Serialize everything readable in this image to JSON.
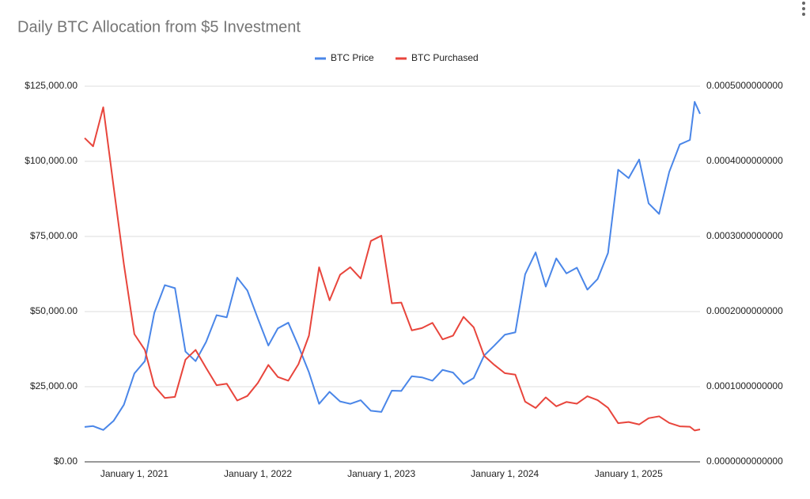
{
  "chart_data": {
    "type": "line",
    "title": "Daily BTC Allocation from $5 Investment",
    "x": [
      "2020-08-07",
      "2020-09-01",
      "2020-10-01",
      "2020-11-01",
      "2020-12-01",
      "2021-01-01",
      "2021-02-01",
      "2021-03-01",
      "2021-04-01",
      "2021-05-01",
      "2021-06-01",
      "2021-07-01",
      "2021-08-01",
      "2021-09-01",
      "2021-10-01",
      "2021-11-01",
      "2021-12-01",
      "2022-01-01",
      "2022-02-01",
      "2022-03-01",
      "2022-04-01",
      "2022-05-01",
      "2022-06-01",
      "2022-07-01",
      "2022-08-01",
      "2022-09-01",
      "2022-10-01",
      "2022-11-01",
      "2022-12-01",
      "2023-01-01",
      "2023-02-01",
      "2023-03-01",
      "2023-04-01",
      "2023-05-01",
      "2023-06-01",
      "2023-07-01",
      "2023-08-01",
      "2023-09-01",
      "2023-10-01",
      "2023-11-01",
      "2023-12-01",
      "2024-01-01",
      "2024-02-01",
      "2024-03-01",
      "2024-04-01",
      "2024-05-01",
      "2024-06-01",
      "2024-07-01",
      "2024-08-01",
      "2024-09-01",
      "2024-10-01",
      "2024-11-01",
      "2024-12-01",
      "2025-01-01",
      "2025-02-01",
      "2025-03-01",
      "2025-04-01",
      "2025-05-01",
      "2025-06-01",
      "2025-07-01",
      "2025-07-15",
      "2025-07-31"
    ],
    "series": [
      {
        "name": "BTC Price",
        "color": "#4a86e8",
        "axis": "y",
        "values": [
          11600,
          11900,
          10600,
          13700,
          19000,
          29400,
          33500,
          49600,
          58800,
          57800,
          36700,
          33500,
          39900,
          48800,
          48100,
          61300,
          57000,
          47700,
          38700,
          44400,
          46300,
          38500,
          29800,
          19300,
          23300,
          20100,
          19300,
          20500,
          17000,
          16600,
          23700,
          23600,
          28500,
          28100,
          27000,
          30600,
          29700,
          25900,
          27900,
          35400,
          38700,
          42300,
          43100,
          62400,
          69700,
          58300,
          67700,
          62700,
          64600,
          57300,
          60800,
          69500,
          97200,
          94400,
          100600,
          86000,
          82500,
          96500,
          105600,
          107100,
          119800,
          115800
        ]
      },
      {
        "name": "BTC Purchased",
        "color": "#e8453c",
        "axis": "y2",
        "values": [
          0.000431,
          0.00042,
          0.000472,
          0.000365,
          0.000263,
          0.00017,
          0.000149,
          0.000101,
          8.5e-05,
          8.65e-05,
          0.000136,
          0.000149,
          0.000125,
          0.000102,
          0.000104,
          8.16e-05,
          8.77e-05,
          0.000105,
          0.000129,
          0.000113,
          0.000108,
          0.00013,
          0.000168,
          0.000259,
          0.000215,
          0.000249,
          0.000259,
          0.000244,
          0.000294,
          0.000301,
          0.000211,
          0.000212,
          0.000175,
          0.000178,
          0.000185,
          0.000163,
          0.000168,
          0.000193,
          0.000179,
          0.000141,
          0.000129,
          0.000118,
          0.000116,
          8.01e-05,
          7.17e-05,
          8.58e-05,
          7.39e-05,
          7.97e-05,
          7.74e-05,
          8.73e-05,
          8.22e-05,
          7.19e-05,
          5.14e-05,
          5.3e-05,
          4.97e-05,
          5.81e-05,
          6.06e-05,
          5.18e-05,
          4.73e-05,
          4.67e-05,
          4.17e-05,
          4.32e-05
        ]
      }
    ],
    "xlim": [
      "2020-08-07",
      "2025-07-31"
    ],
    "xticks": [
      {
        "value": "2021-01-01",
        "label": "January 1, 2021"
      },
      {
        "value": "2022-01-01",
        "label": "January 1, 2022"
      },
      {
        "value": "2023-01-01",
        "label": "January 1, 2023"
      },
      {
        "value": "2024-01-01",
        "label": "January 1, 2024"
      },
      {
        "value": "2025-01-01",
        "label": "January 1, 2025"
      }
    ],
    "ylim": [
      0,
      125000
    ],
    "yticks": [
      {
        "value": 0,
        "label": "$0.00"
      },
      {
        "value": 25000,
        "label": "$25,000.00"
      },
      {
        "value": 50000,
        "label": "$50,000.00"
      },
      {
        "value": 75000,
        "label": "$75,000.00"
      },
      {
        "value": 100000,
        "label": "$100,000.00"
      },
      {
        "value": 125000,
        "label": "$125,000.00"
      }
    ],
    "y2lim": [
      0,
      0.0005
    ],
    "y2ticks": [
      {
        "value": 0,
        "label": "0.0000000000000"
      },
      {
        "value": 0.0001,
        "label": "0.0001000000000"
      },
      {
        "value": 0.0002,
        "label": "0.0002000000000"
      },
      {
        "value": 0.0003,
        "label": "0.0003000000000"
      },
      {
        "value": 0.0004,
        "label": "0.0004000000000"
      },
      {
        "value": 0.0005,
        "label": "0.0005000000000"
      }
    ],
    "grid": true,
    "legend": "top"
  }
}
